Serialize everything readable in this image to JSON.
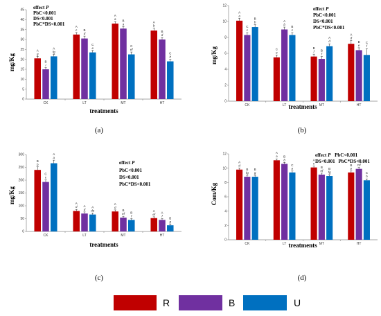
{
  "colors": {
    "R": "#c00000",
    "B": "#7030a0",
    "U": "#0070c0"
  },
  "legend": [
    {
      "label": "R",
      "color": "#c00000"
    },
    {
      "label": "B",
      "color": "#7030a0"
    },
    {
      "label": "U",
      "color": "#0070c0"
    }
  ],
  "chart_data": [
    {
      "type": "bar",
      "panel_label": "(a)",
      "xlabel": "treatments",
      "ylabel": "mg/Kg",
      "ylim": [
        0,
        45
      ],
      "yticks": [
        0,
        5,
        10,
        15,
        20,
        25,
        30,
        35,
        40,
        45
      ],
      "categories": [
        "CK",
        "LT",
        "MT",
        "HT"
      ],
      "series": [
        {
          "name": "R",
          "values": [
            20.5,
            32.5,
            38.0,
            34.5
          ],
          "errors": [
            1.0,
            1.0,
            1.0,
            1.2
          ],
          "upper": [
            "A",
            "A",
            "A",
            "A"
          ],
          "lower": [
            "g",
            "c",
            "a",
            "b"
          ]
        },
        {
          "name": "B",
          "values": [
            15.0,
            30.5,
            35.5,
            30.0
          ],
          "errors": [
            0.8,
            1.2,
            1.0,
            1.0
          ],
          "upper": [
            "B",
            "B",
            "B",
            "B"
          ],
          "lower": [
            "i",
            "d",
            "a",
            "d"
          ]
        },
        {
          "name": "U",
          "values": [
            21.5,
            23.5,
            22.5,
            19.0
          ],
          "errors": [
            1.0,
            1.0,
            1.2,
            1.0
          ],
          "upper": [
            "A",
            "C",
            "C",
            "C"
          ],
          "lower": [
            "fg",
            "e",
            "ef",
            "h"
          ]
        }
      ],
      "annotations": [
        "effect",
        "P",
        "PbC<0.001",
        "DS<0.001",
        "PbC*DS<0.001"
      ],
      "annotation_layout": "top-right"
    },
    {
      "type": "bar",
      "panel_label": "(b)",
      "xlabel": "treatments",
      "ylabel": "mg/Kg",
      "ylim": [
        0,
        12
      ],
      "yticks": [
        0,
        2,
        4,
        6,
        8,
        10,
        12
      ],
      "categories": [
        "CK",
        "LT",
        "MT",
        "HT"
      ],
      "series": [
        {
          "name": "R",
          "values": [
            10.1,
            5.5,
            5.6,
            7.2
          ],
          "errors": [
            0.3,
            0.3,
            0.3,
            0.4
          ],
          "upper": [
            "A",
            "C",
            "B",
            "A"
          ],
          "lower": [
            "a",
            "e",
            "f",
            "d"
          ]
        },
        {
          "name": "B",
          "values": [
            8.3,
            9.0,
            5.3,
            6.4
          ],
          "errors": [
            0.3,
            0.3,
            0.3,
            0.3
          ],
          "upper": [
            "C",
            "A",
            "B",
            "B"
          ],
          "lower": [
            "c",
            "b",
            "f",
            "e"
          ]
        },
        {
          "name": "U",
          "values": [
            9.3,
            8.3,
            6.9,
            5.8
          ],
          "errors": [
            0.3,
            0.3,
            0.3,
            0.8
          ],
          "upper": [
            "B",
            "B",
            "A",
            "C"
          ],
          "lower": [
            "b",
            "c",
            "d",
            "f"
          ]
        }
      ],
      "annotations": [
        "effect",
        "P",
        "PbC<0.001",
        "DS<0.001",
        "PbC*DS<0.001"
      ],
      "annotation_layout": "top-right"
    },
    {
      "type": "bar",
      "panel_label": "(c)",
      "xlabel": "treatments",
      "ylabel": "mg/Kg",
      "ylim": [
        0,
        300
      ],
      "yticks": [
        0,
        50,
        100,
        150,
        200,
        250,
        300
      ],
      "categories": [
        "CK",
        "LT",
        "MT",
        "HT"
      ],
      "series": [
        {
          "name": "R",
          "values": [
            240,
            80,
            78,
            52
          ],
          "errors": [
            12,
            6,
            6,
            5
          ],
          "upper": [
            "B",
            "A",
            "A",
            "A"
          ],
          "lower": [
            "b",
            "d",
            "d",
            "ef"
          ]
        },
        {
          "name": "B",
          "values": [
            193,
            70,
            54,
            45
          ],
          "errors": [
            8,
            6,
            5,
            5
          ],
          "upper": [
            "C",
            "A",
            "B",
            "A"
          ],
          "lower": [
            "c",
            "d",
            "ef",
            "f"
          ]
        },
        {
          "name": "U",
          "values": [
            266,
            66,
            45,
            24
          ],
          "errors": [
            12,
            6,
            5,
            5
          ],
          "upper": [
            "A",
            "A",
            "B",
            "B"
          ],
          "lower": [
            "a",
            "de",
            "f",
            "g"
          ]
        }
      ],
      "annotations": [
        "effect",
        "P",
        "PbC<0.001",
        "DS<0.001",
        "PbC*DS<0.001"
      ],
      "annotation_layout": "top-right"
    },
    {
      "type": "bar",
      "panel_label": "(d)",
      "xlabel": "treatments",
      "ylabel": "Com/Kg",
      "ylim": [
        0,
        12
      ],
      "yticks": [
        0,
        2,
        4,
        6,
        8,
        10,
        12
      ],
      "categories": [
        "CK",
        "LT",
        "MT",
        "HT"
      ],
      "series": [
        {
          "name": "R",
          "values": [
            9.8,
            11.1,
            10.1,
            9.4
          ],
          "errors": [
            0.2,
            0.2,
            0.2,
            0.2
          ],
          "upper": [
            "A",
            "A",
            "A",
            "B"
          ],
          "lower": [
            "d",
            "a",
            "c",
            "e"
          ]
        },
        {
          "name": "B",
          "values": [
            8.8,
            10.6,
            9.1,
            9.9
          ],
          "errors": [
            0.2,
            0.2,
            0.2,
            0.2
          ],
          "upper": [
            "B",
            "B",
            "B",
            "A"
          ],
          "lower": [
            "fg",
            "b",
            "ef",
            "cd"
          ]
        },
        {
          "name": "U",
          "values": [
            8.8,
            9.4,
            8.9,
            8.3
          ],
          "errors": [
            0.2,
            0.2,
            0.2,
            0.2
          ],
          "upper": [
            "B",
            "C",
            "B",
            "C"
          ],
          "lower": [
            "g",
            "e",
            "fg",
            "h"
          ]
        }
      ],
      "annotations": [
        "effect",
        "P",
        "PbC<0.001",
        "DS<0.001",
        "PbC*DS<0.001"
      ],
      "annotation_layout": "inline-top"
    }
  ]
}
